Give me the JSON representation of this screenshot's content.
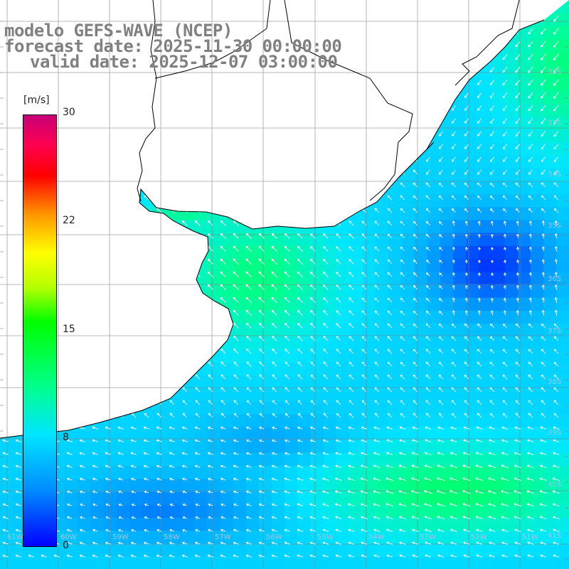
{
  "header": {
    "model": "modelo GEFS-WAVE (NCEP)",
    "forecast": "forecast date: 2025-11-30 00:00:00",
    "valid": "valid date: 2025-12-07 03:00:00"
  },
  "colorbar": {
    "unit": "[m/s]",
    "ticks": [
      {
        "label": "30",
        "value": 30
      },
      {
        "label": "22",
        "value": 22
      },
      {
        "label": "15",
        "value": 15
      },
      {
        "label": "8",
        "value": 8
      },
      {
        "label": "0",
        "value": 0
      }
    ],
    "colors": [
      "#0000ff",
      "#008cff",
      "#00e6ff",
      "#00ff8c",
      "#00ff00",
      "#b4ff00",
      "#ffff00",
      "#ff9600",
      "#ff0000",
      "#ff0050",
      "#c80078"
    ]
  },
  "map": {
    "variable": "wind speed and direction",
    "land_color": "#ffffff",
    "coastline_color": "#000000",
    "gridline_color": "#808080",
    "vector_color": "#ffffff",
    "lat_labels": [
      "32S",
      "33S",
      "34S",
      "35S",
      "36S",
      "37S",
      "38S",
      "39S",
      "40S",
      "41S"
    ],
    "lon_labels": [
      "61W",
      "60W",
      "59W",
      "58W",
      "57W",
      "56W",
      "55W",
      "54W",
      "53W",
      "52W",
      "51W"
    ]
  }
}
